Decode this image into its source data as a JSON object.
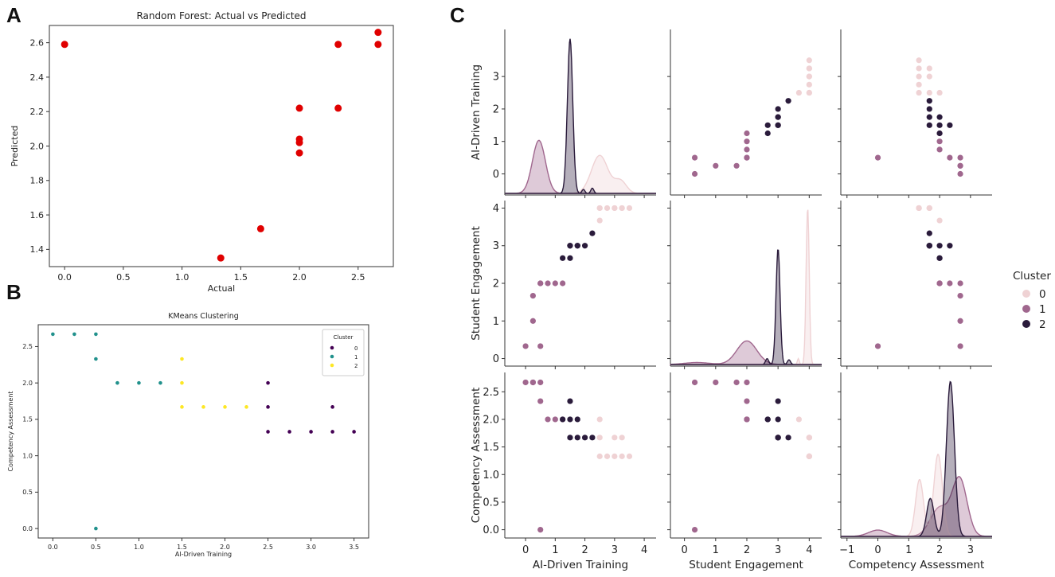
{
  "panel_labels": {
    "a": "A",
    "b": "B",
    "c": "C"
  },
  "chart_data": [
    {
      "id": "A",
      "type": "scatter",
      "title": "Random Forest: Actual vs Predicted",
      "xlabel": "Actual",
      "ylabel": "Predicted",
      "xlim": [
        -0.13,
        2.8
      ],
      "ylim": [
        1.3,
        2.7
      ],
      "xticks": [
        0.0,
        0.5,
        1.0,
        1.5,
        2.0,
        2.5
      ],
      "xtick_labels": [
        "0.0",
        "0.5",
        "1.0",
        "1.5",
        "2.0",
        "2.5"
      ],
      "yticks": [
        1.4,
        1.6,
        1.8,
        2.0,
        2.2,
        2.4,
        2.6
      ],
      "ytick_labels": [
        "1.4",
        "1.6",
        "1.8",
        "2.0",
        "2.2",
        "2.4",
        "2.6"
      ],
      "color": "#e00000",
      "x": [
        0.0,
        1.33,
        1.67,
        2.0,
        2.0,
        2.0,
        2.0,
        2.33,
        2.33,
        2.67,
        2.67
      ],
      "y": [
        2.59,
        1.35,
        1.52,
        1.96,
        2.02,
        2.04,
        2.22,
        2.22,
        2.59,
        2.59,
        2.66
      ]
    },
    {
      "id": "B",
      "type": "scatter",
      "title": "KMeans Clustering",
      "xlabel": "AI-Driven Training",
      "ylabel": "Competency Assessment",
      "xlim": [
        -0.17,
        3.67
      ],
      "ylim": [
        -0.13,
        2.8
      ],
      "xticks": [
        0.0,
        0.5,
        1.0,
        1.5,
        2.0,
        2.5,
        3.0,
        3.5
      ],
      "xtick_labels": [
        "0.0",
        "0.5",
        "1.0",
        "1.5",
        "2.0",
        "2.5",
        "3.0",
        "3.5"
      ],
      "yticks": [
        0.0,
        0.5,
        1.0,
        1.5,
        2.0,
        2.5
      ],
      "ytick_labels": [
        "0.0",
        "0.5",
        "1.0",
        "1.5",
        "2.0",
        "2.5"
      ],
      "legend": {
        "title": "Cluster",
        "location": "top-right",
        "labels": [
          "0",
          "1",
          "2"
        ],
        "colors": [
          "#440154",
          "#21918c",
          "#fde725"
        ]
      },
      "series": [
        {
          "name": "0",
          "color": "#440154",
          "x": [
            2.5,
            2.5,
            2.5,
            2.75,
            3.0,
            3.25,
            3.25,
            3.5
          ],
          "y": [
            2.0,
            1.67,
            1.33,
            1.33,
            1.33,
            1.33,
            1.67,
            1.33
          ]
        },
        {
          "name": "1",
          "color": "#21918c",
          "x": [
            0.0,
            0.25,
            0.5,
            0.5,
            0.75,
            1.0,
            1.25,
            0.5
          ],
          "y": [
            2.67,
            2.67,
            2.67,
            2.33,
            2.0,
            2.0,
            2.0,
            0.0
          ]
        },
        {
          "name": "2",
          "color": "#fde725",
          "x": [
            1.5,
            1.5,
            1.5,
            1.75,
            2.0,
            2.25
          ],
          "y": [
            2.33,
            2.0,
            1.67,
            1.67,
            1.67,
            1.67
          ]
        }
      ]
    },
    {
      "id": "C",
      "type": "scatter",
      "title": "",
      "variables": [
        "AI-Driven Training",
        "Student Engagement",
        "Competency Assessment"
      ],
      "axis_ranges": [
        [
          -0.65,
          4.45
        ],
        [
          -0.2,
          4.2
        ],
        [
          -0.15,
          2.85
        ]
      ],
      "x_ranges": [
        [
          -0.7,
          4.4
        ],
        [
          -0.45,
          4.4
        ],
        [
          -1.2,
          3.7
        ]
      ],
      "xticks": [
        [
          0,
          1,
          2,
          3,
          4
        ],
        [
          0,
          1,
          2,
          3,
          4
        ],
        [
          -1,
          0,
          1,
          2,
          3
        ]
      ],
      "xtick_labels": [
        [
          "0",
          "1",
          "2",
          "3",
          "4"
        ],
        [
          "0",
          "1",
          "2",
          "3",
          "4"
        ],
        [
          "−1",
          "0",
          "1",
          "2",
          "3"
        ]
      ],
      "yticks": [
        [
          0,
          1,
          2,
          3
        ],
        [
          0,
          1,
          2,
          3,
          4
        ],
        [
          0.0,
          0.5,
          1.0,
          1.5,
          2.0,
          2.5
        ]
      ],
      "ytick_labels": [
        [
          "0",
          "1",
          "2",
          "3"
        ],
        [
          "0",
          "1",
          "2",
          "3",
          "4"
        ],
        [
          "0.0",
          "0.5",
          "1.0",
          "1.5",
          "2.0",
          "2.5"
        ]
      ],
      "legend": {
        "title": "Cluster",
        "location": "right",
        "labels": [
          "0",
          "1",
          "2"
        ],
        "colors": [
          "#efd2d4",
          "#a0678e",
          "#2a1b3b"
        ]
      },
      "points": [
        {
          "ai": 2.5,
          "se": 3.67,
          "ca": 2.0,
          "c": "0"
        },
        {
          "ai": 2.5,
          "se": 4.0,
          "ca": 1.67,
          "c": "0"
        },
        {
          "ai": 2.75,
          "se": 4.0,
          "ca": 1.33,
          "c": "0"
        },
        {
          "ai": 3.0,
          "se": 4.0,
          "ca": 1.33,
          "c": "0"
        },
        {
          "ai": 3.25,
          "se": 4.0,
          "ca": 1.67,
          "c": "0"
        },
        {
          "ai": 3.25,
          "se": 4.0,
          "ca": 1.33,
          "c": "0"
        },
        {
          "ai": 3.5,
          "se": 4.0,
          "ca": 1.33,
          "c": "0"
        },
        {
          "ai": 2.5,
          "se": 4.0,
          "ca": 1.33,
          "c": "0"
        },
        {
          "ai": 3.0,
          "se": 4.0,
          "ca": 1.67,
          "c": "0"
        },
        {
          "ai": 0.5,
          "se": 0.33,
          "ca": 0.0,
          "c": "1"
        },
        {
          "ai": 0.0,
          "se": 0.33,
          "ca": 2.67,
          "c": "1"
        },
        {
          "ai": 0.25,
          "se": 1.0,
          "ca": 2.67,
          "c": "1"
        },
        {
          "ai": 0.25,
          "se": 1.67,
          "ca": 2.67,
          "c": "1"
        },
        {
          "ai": 0.5,
          "se": 2.0,
          "ca": 2.33,
          "c": "1"
        },
        {
          "ai": 0.75,
          "se": 2.0,
          "ca": 2.0,
          "c": "1"
        },
        {
          "ai": 1.0,
          "se": 2.0,
          "ca": 2.0,
          "c": "1"
        },
        {
          "ai": 1.25,
          "se": 2.0,
          "ca": 2.0,
          "c": "1"
        },
        {
          "ai": 0.5,
          "se": 2.0,
          "ca": 2.67,
          "c": "1"
        },
        {
          "ai": 1.25,
          "se": 2.67,
          "ca": 2.0,
          "c": "2"
        },
        {
          "ai": 1.5,
          "se": 3.0,
          "ca": 2.33,
          "c": "2"
        },
        {
          "ai": 1.5,
          "se": 3.0,
          "ca": 1.67,
          "c": "2"
        },
        {
          "ai": 1.75,
          "se": 3.0,
          "ca": 1.67,
          "c": "2"
        },
        {
          "ai": 2.0,
          "se": 3.0,
          "ca": 1.67,
          "c": "2"
        },
        {
          "ai": 2.25,
          "se": 3.33,
          "ca": 1.67,
          "c": "2"
        },
        {
          "ai": 1.5,
          "se": 2.67,
          "ca": 2.0,
          "c": "2"
        },
        {
          "ai": 1.75,
          "se": 3.0,
          "ca": 2.0,
          "c": "2"
        }
      ],
      "diagonal_kde": [
        {
          "variable": "AI-Driven Training",
          "series": [
            {
              "cluster": "0",
              "peaks": [
                [
                  2.5,
                  0.28,
                  0.86
                ],
                [
                  3.2,
                  0.2,
                  0.28
                ]
              ]
            },
            {
              "cluster": "1",
              "peaks": [
                [
                  0.45,
                  0.22,
                  1.2
                ]
              ]
            },
            {
              "cluster": "2",
              "peaks": [
                [
                  1.5,
                  0.09,
                  3.5
                ],
                [
                  1.95,
                  0.05,
                  0.09
                ],
                [
                  2.25,
                  0.05,
                  0.12
                ]
              ]
            }
          ]
        },
        {
          "variable": "Student Engagement",
          "series": [
            {
              "cluster": "0",
              "peaks": [
                [
                  3.95,
                  0.05,
                  4.0
                ],
                [
                  3.65,
                  0.03,
                  0.15
                ]
              ]
            },
            {
              "cluster": "1",
              "peaks": [
                [
                  2.0,
                  0.32,
                  0.6
                ],
                [
                  0.4,
                  0.4,
                  0.05
                ]
              ]
            },
            {
              "cluster": "2",
              "peaks": [
                [
                  3.0,
                  0.065,
                  2.95
                ],
                [
                  2.65,
                  0.05,
                  0.15
                ],
                [
                  3.35,
                  0.05,
                  0.12
                ]
              ]
            }
          ]
        },
        {
          "variable": "Competency Assessment",
          "series": [
            {
              "cluster": "0",
              "peaks": [
                [
                  1.35,
                  0.13,
                  0.9
                ],
                [
                  1.95,
                  0.14,
                  1.3
                ]
              ]
            },
            {
              "cluster": "1",
              "peaks": [
                [
                  0.0,
                  0.3,
                  0.1
                ],
                [
                  2.0,
                  0.3,
                  0.45
                ],
                [
                  2.65,
                  0.24,
                  0.9
                ]
              ]
            },
            {
              "cluster": "2",
              "peaks": [
                [
                  1.7,
                  0.12,
                  0.6
                ],
                [
                  2.35,
                  0.13,
                  2.45
                ]
              ]
            }
          ]
        }
      ]
    }
  ]
}
